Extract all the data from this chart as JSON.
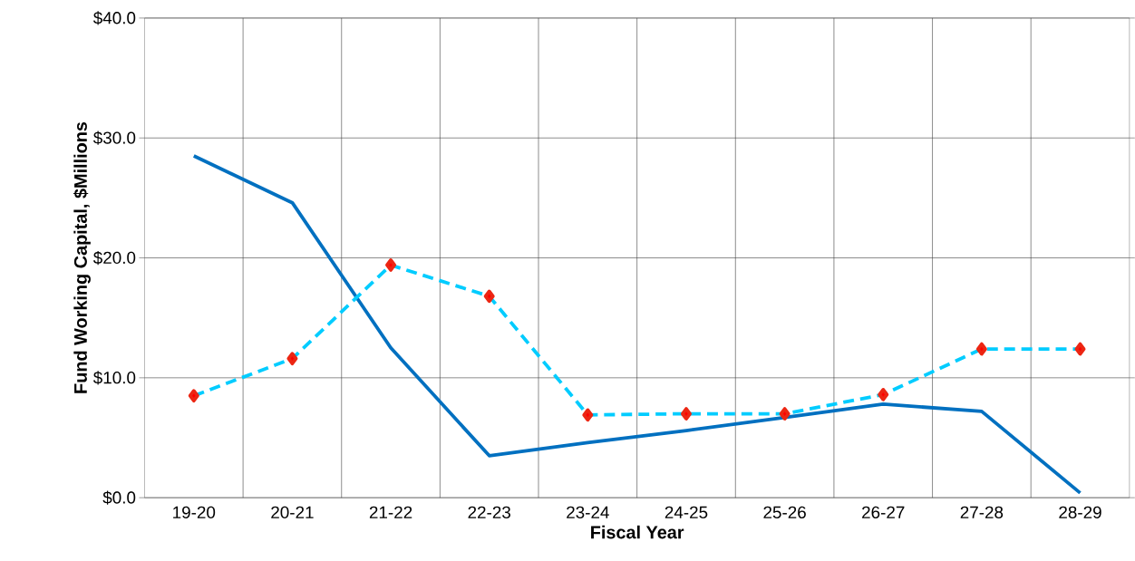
{
  "chart_data": {
    "type": "line",
    "xlabel": "Fiscal Year",
    "ylabel": "Fund Working Capital, $Millions",
    "categories": [
      "19-20",
      "20-21",
      "21-22",
      "22-23",
      "23-24",
      "24-25",
      "25-26",
      "26-27",
      "27-28",
      "28-29"
    ],
    "series": [
      {
        "color": "#0070c0",
        "line_style": "solid",
        "marker": "none",
        "values": [
          28.5,
          24.6,
          12.5,
          3.5,
          4.6,
          5.6,
          6.7,
          7.8,
          7.2,
          0.4
        ]
      },
      {
        "color": "#00ccff",
        "line_style": "dashed",
        "marker": "diamond",
        "values": [
          8.5,
          11.6,
          19.4,
          16.8,
          6.9,
          7.0,
          7.0,
          8.6,
          12.4,
          12.4
        ]
      }
    ],
    "ylim": [
      0,
      40
    ],
    "yticks": [
      {
        "value": 0,
        "label": "$0.0"
      },
      {
        "value": 10,
        "label": "$10.0"
      },
      {
        "value": 20,
        "label": "$20.0"
      },
      {
        "value": 30,
        "label": "$30.0"
      },
      {
        "value": 40,
        "label": "$40.0"
      }
    ],
    "grid": true
  }
}
